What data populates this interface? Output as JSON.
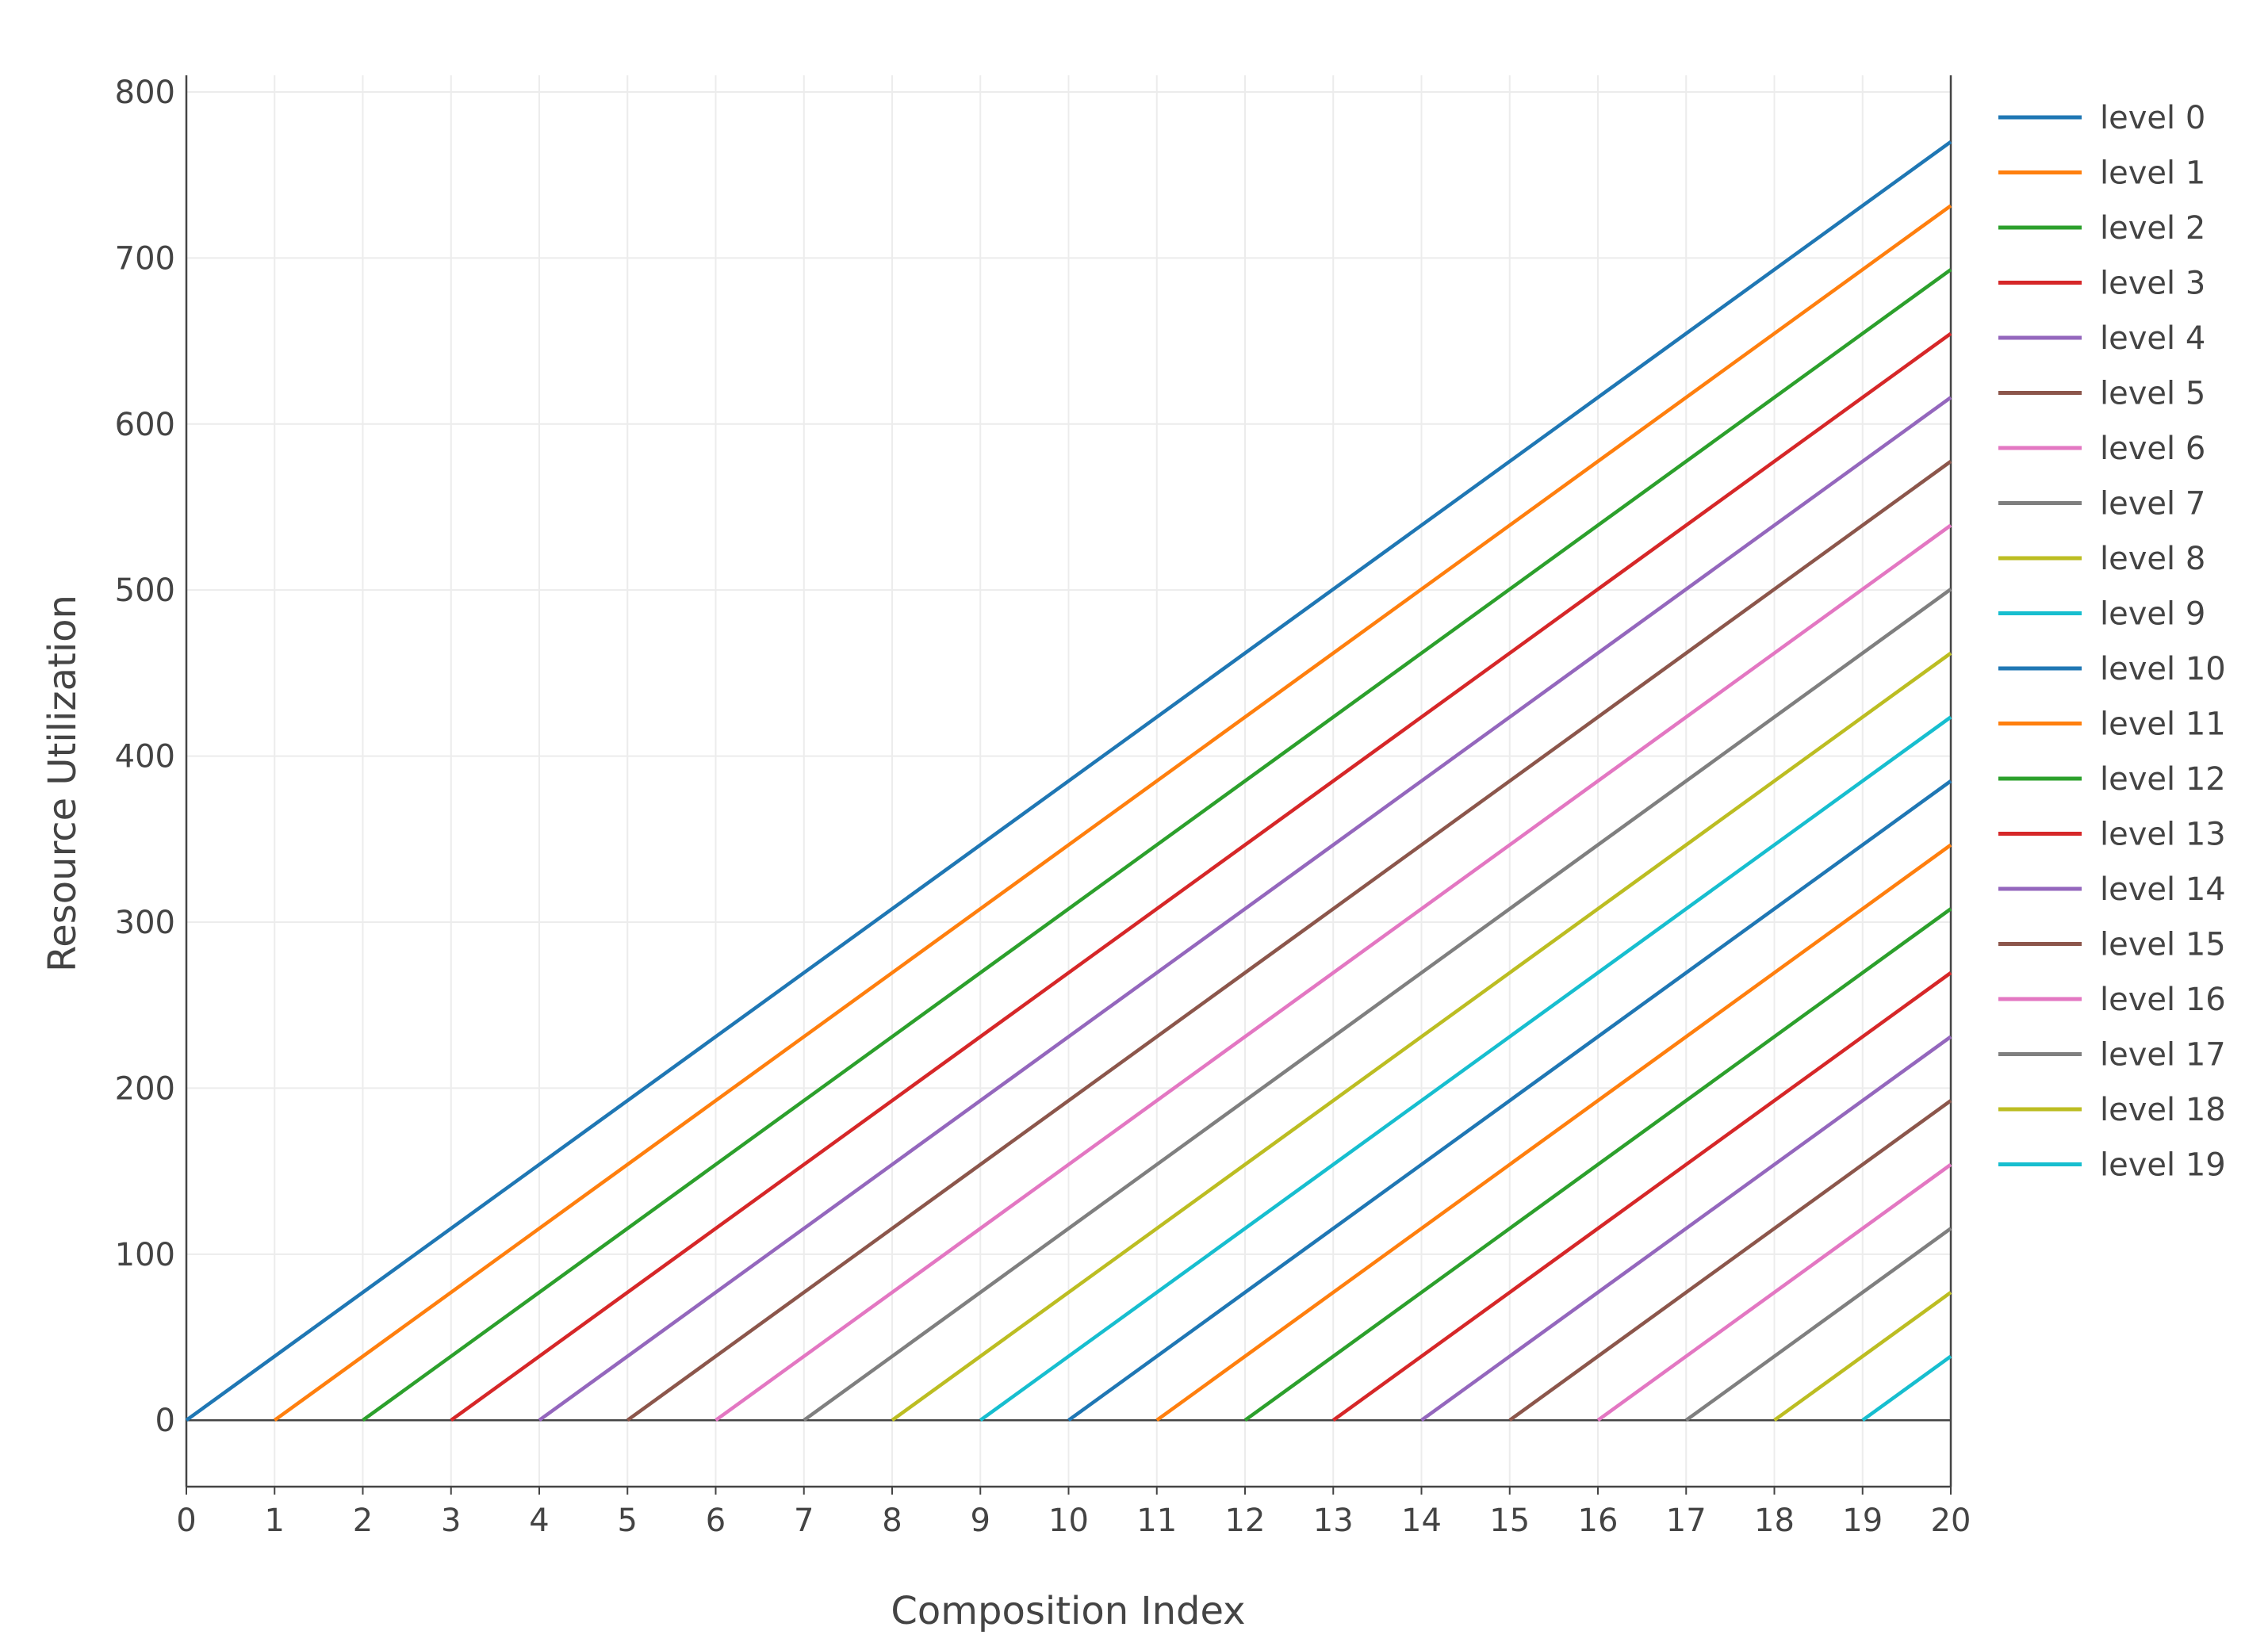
{
  "chart_data": {
    "type": "line",
    "xlabel": "Composition Index",
    "ylabel": "Resource Utilization",
    "xlim": [
      0,
      20
    ],
    "ylim": [
      -40,
      810
    ],
    "x_ticks": [
      "0",
      "1",
      "2",
      "3",
      "4",
      "5",
      "6",
      "7",
      "8",
      "9",
      "10",
      "11",
      "12",
      "13",
      "14",
      "15",
      "16",
      "17",
      "18",
      "19",
      "20"
    ],
    "y_ticks": [
      "0",
      "100",
      "200",
      "300",
      "400",
      "500",
      "600",
      "700",
      "800"
    ],
    "grid": true,
    "legend_position": "right",
    "series": [
      {
        "name": "level 0",
        "color": "#1f77b4",
        "x": [
          0,
          20
        ],
        "y": [
          0,
          770
        ]
      },
      {
        "name": "level 1",
        "color": "#ff7f0e",
        "x": [
          1,
          20
        ],
        "y": [
          0,
          731.5
        ]
      },
      {
        "name": "level 2",
        "color": "#2ca02c",
        "x": [
          2,
          20
        ],
        "y": [
          0,
          693
        ]
      },
      {
        "name": "level 3",
        "color": "#d62728",
        "x": [
          3,
          20
        ],
        "y": [
          0,
          654.5
        ]
      },
      {
        "name": "level 4",
        "color": "#9467bd",
        "x": [
          4,
          20
        ],
        "y": [
          0,
          616
        ]
      },
      {
        "name": "level 5",
        "color": "#8c564b",
        "x": [
          5,
          20
        ],
        "y": [
          0,
          577.5
        ]
      },
      {
        "name": "level 6",
        "color": "#e377c2",
        "x": [
          6,
          20
        ],
        "y": [
          0,
          539
        ]
      },
      {
        "name": "level 7",
        "color": "#7f7f7f",
        "x": [
          7,
          20
        ],
        "y": [
          0,
          500.5
        ]
      },
      {
        "name": "level 8",
        "color": "#bcbd22",
        "x": [
          8,
          20
        ],
        "y": [
          0,
          462
        ]
      },
      {
        "name": "level 9",
        "color": "#17becf",
        "x": [
          9,
          20
        ],
        "y": [
          0,
          423.5
        ]
      },
      {
        "name": "level 10",
        "color": "#1f77b4",
        "x": [
          10,
          20
        ],
        "y": [
          0,
          385
        ]
      },
      {
        "name": "level 11",
        "color": "#ff7f0e",
        "x": [
          11,
          20
        ],
        "y": [
          0,
          346.5
        ]
      },
      {
        "name": "level 12",
        "color": "#2ca02c",
        "x": [
          12,
          20
        ],
        "y": [
          0,
          308
        ]
      },
      {
        "name": "level 13",
        "color": "#d62728",
        "x": [
          13,
          20
        ],
        "y": [
          0,
          269.5
        ]
      },
      {
        "name": "level 14",
        "color": "#9467bd",
        "x": [
          14,
          20
        ],
        "y": [
          0,
          231
        ]
      },
      {
        "name": "level 15",
        "color": "#8c564b",
        "x": [
          15,
          20
        ],
        "y": [
          0,
          192.5
        ]
      },
      {
        "name": "level 16",
        "color": "#e377c2",
        "x": [
          16,
          20
        ],
        "y": [
          0,
          154
        ]
      },
      {
        "name": "level 17",
        "color": "#7f7f7f",
        "x": [
          17,
          20
        ],
        "y": [
          0,
          115.5
        ]
      },
      {
        "name": "level 18",
        "color": "#bcbd22",
        "x": [
          18,
          20
        ],
        "y": [
          0,
          77
        ]
      },
      {
        "name": "level 19",
        "color": "#17becf",
        "x": [
          19,
          20
        ],
        "y": [
          0,
          38.5
        ]
      }
    ]
  }
}
